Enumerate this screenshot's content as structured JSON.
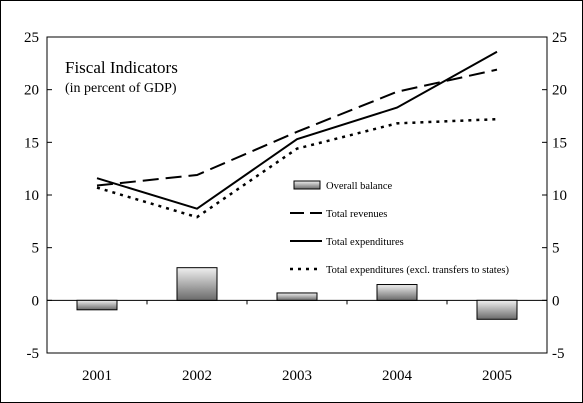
{
  "chart_data": {
    "type": "bar+line",
    "title": "Fiscal Indicators",
    "subtitle": "(in percent of GDP)",
    "categories": [
      "2001",
      "2002",
      "2003",
      "2004",
      "2005"
    ],
    "ylim": [
      -5,
      25
    ],
    "yticks": [
      "-5",
      "0",
      "5",
      "10",
      "15",
      "20",
      "25"
    ],
    "grid": false,
    "legend_position": "center-right",
    "series": [
      {
        "name": "Overall balance",
        "type": "bar",
        "values": [
          -0.9,
          3.1,
          0.7,
          1.5,
          -1.8
        ]
      },
      {
        "name": "Total revenues",
        "type": "line",
        "style": "dashed",
        "values": [
          10.9,
          11.9,
          16.0,
          19.8,
          21.9
        ]
      },
      {
        "name": "Total expenditures",
        "type": "line",
        "style": "solid",
        "values": [
          11.6,
          8.7,
          15.3,
          18.3,
          23.6
        ]
      },
      {
        "name": "Total expenditures (excl. transfers to states)",
        "type": "line",
        "style": "dotted",
        "values": [
          10.7,
          7.9,
          14.4,
          16.8,
          17.2
        ]
      }
    ]
  }
}
